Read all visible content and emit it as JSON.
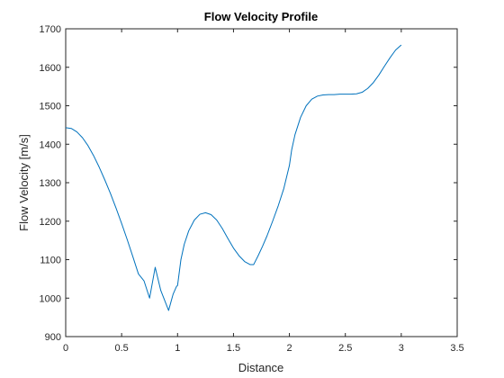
{
  "chart_data": {
    "type": "line",
    "title": "Flow Velocity Profile",
    "xlabel": "Distance",
    "ylabel": "Flow Velocity [m/s]",
    "xlim": [
      0,
      3.5
    ],
    "ylim": [
      900,
      1700
    ],
    "xticks": [
      0,
      0.5,
      1,
      1.5,
      2,
      2.5,
      3,
      3.5
    ],
    "yticks": [
      900,
      1000,
      1100,
      1200,
      1300,
      1400,
      1500,
      1600,
      1700
    ],
    "xtick_labels": [
      "0",
      "0.5",
      "1",
      "1.5",
      "2",
      "2.5",
      "3",
      "3.5"
    ],
    "ytick_labels": [
      "900",
      "1000",
      "1100",
      "1200",
      "1300",
      "1400",
      "1500",
      "1600",
      "1700"
    ],
    "grid": false,
    "line_color": "#0072BD",
    "series": [
      {
        "x": [
          0,
          0.05,
          0.1,
          0.15,
          0.2,
          0.25,
          0.3,
          0.35,
          0.4,
          0.45,
          0.5,
          0.55,
          0.6,
          0.65,
          0.7,
          0.75,
          0.8,
          0.85,
          0.92,
          0.96,
          0.99,
          1.0,
          1.03,
          1.06,
          1.1,
          1.15,
          1.2,
          1.25,
          1.3,
          1.35,
          1.4,
          1.45,
          1.5,
          1.55,
          1.6,
          1.65,
          1.68,
          1.72,
          1.76,
          1.8,
          1.85,
          1.9,
          1.95,
          2.0,
          2.02,
          2.05,
          2.1,
          2.15,
          2.2,
          2.25,
          2.3,
          2.35,
          2.4,
          2.45,
          2.5,
          2.55,
          2.6,
          2.65,
          2.7,
          2.75,
          2.8,
          2.85,
          2.9,
          2.95,
          3.0
        ],
        "y": [
          1443,
          1441,
          1432,
          1417,
          1396,
          1370,
          1340,
          1307,
          1272,
          1234,
          1194,
          1152,
          1108,
          1063,
          1045,
          1000,
          1080,
          1020,
          968,
          1010,
          1030,
          1033,
          1100,
          1140,
          1175,
          1203,
          1218,
          1222,
          1217,
          1203,
          1181,
          1155,
          1130,
          1110,
          1095,
          1087,
          1087,
          1110,
          1135,
          1162,
          1200,
          1240,
          1285,
          1345,
          1385,
          1425,
          1470,
          1500,
          1517,
          1525,
          1528,
          1529,
          1529,
          1530,
          1530,
          1530,
          1531,
          1535,
          1545,
          1560,
          1580,
          1603,
          1625,
          1645,
          1658
        ]
      }
    ]
  }
}
